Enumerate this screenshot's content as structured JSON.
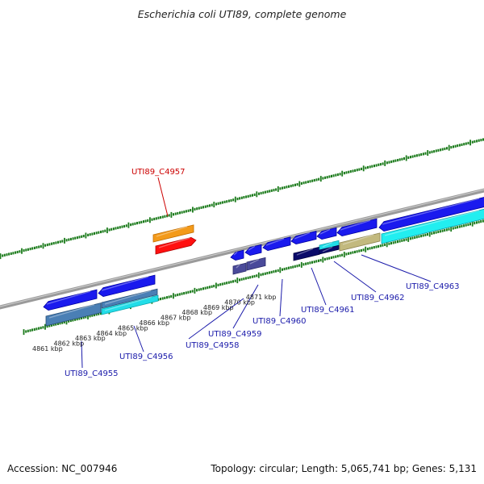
{
  "title": "Escherichia coli UTI89, complete genome",
  "footer": {
    "accession": "Accession: NC_007946",
    "stats": "Topology: circular; Length: 5,065,741 bp; Genes: 5,131"
  },
  "colors": {
    "backbone": "#8a8a8a",
    "ticks": "#1a7a1a",
    "label_forward": "#cc0000",
    "label_reverse": "#1a1aaa"
  },
  "kbp_labels": [
    {
      "text": "4861 kbp"
    },
    {
      "text": "4862 kbp"
    },
    {
      "text": "4863 kbp"
    },
    {
      "text": "4864 kbp"
    },
    {
      "text": "4865 kbp"
    },
    {
      "text": "4866 kbp"
    },
    {
      "text": "4867 kbp"
    },
    {
      "text": "4868 kbp"
    },
    {
      "text": "4869 kbp"
    },
    {
      "text": "4870 kbp"
    },
    {
      "text": "4871 kbp"
    }
  ],
  "gene_labels": [
    {
      "text": "UTI89_C4957",
      "strand": "forward"
    },
    {
      "text": "UTI89_C4955",
      "strand": "reverse"
    },
    {
      "text": "UTI89_C4956",
      "strand": "reverse"
    },
    {
      "text": "UTI89_C4958",
      "strand": "reverse"
    },
    {
      "text": "UTI89_C4959",
      "strand": "reverse"
    },
    {
      "text": "UTI89_C4960",
      "strand": "reverse"
    },
    {
      "text": "UTI89_C4961",
      "strand": "reverse"
    },
    {
      "text": "UTI89_C4962",
      "strand": "reverse"
    },
    {
      "text": "UTI89_C4963",
      "strand": "reverse"
    }
  ]
}
